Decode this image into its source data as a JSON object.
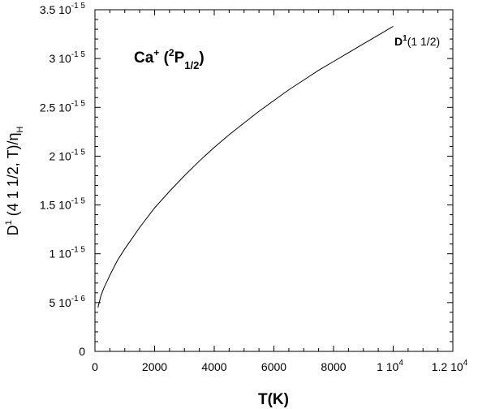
{
  "chart_data": {
    "type": "line",
    "title": "",
    "xlabel": "T(K)",
    "ylabel": {
      "main": "D",
      "sup": "1",
      "middle": " (4 1  1/2, T)/η",
      "sub": "H"
    },
    "annotation": {
      "main": "Ca",
      "sup1": "+",
      "paren_open": " (",
      "sup2": "2",
      "letter": "P",
      "sub": "1/2",
      "paren_close": ")"
    },
    "xlim": [
      0,
      12000
    ],
    "ylim": [
      0,
      3.5e-15
    ],
    "x_ticks": [
      {
        "value": 0,
        "mantissa": "0",
        "exp": ""
      },
      {
        "value": 2000,
        "mantissa": "2000",
        "exp": ""
      },
      {
        "value": 4000,
        "mantissa": "4000",
        "exp": ""
      },
      {
        "value": 6000,
        "mantissa": "6000",
        "exp": ""
      },
      {
        "value": 8000,
        "mantissa": "8000",
        "exp": ""
      },
      {
        "value": 10000,
        "mantissa": "1 10",
        "exp": "4"
      },
      {
        "value": 12000,
        "mantissa": "1.2 10",
        "exp": "4"
      }
    ],
    "y_ticks": [
      {
        "value": 0,
        "mantissa": "0",
        "exp": ""
      },
      {
        "value": 5e-16,
        "mantissa": "5 10",
        "exp": "-1 6"
      },
      {
        "value": 1e-15,
        "mantissa": "1 10",
        "exp": "-1 5"
      },
      {
        "value": 1.5e-15,
        "mantissa": "1.5 10",
        "exp": "-1 5"
      },
      {
        "value": 2e-15,
        "mantissa": "2 10",
        "exp": "-1 5"
      },
      {
        "value": 2.5e-15,
        "mantissa": "2.5 10",
        "exp": "-1 5"
      },
      {
        "value": 3e-15,
        "mantissa": "3 10",
        "exp": "-1 5"
      },
      {
        "value": 3.5e-15,
        "mantissa": "3.5 10",
        "exp": "-1 5"
      }
    ],
    "series": [
      {
        "label": {
          "main": "D",
          "sup": "1",
          "rest": "(1 1/2)"
        },
        "x": [
          100,
          200,
          300,
          500,
          750,
          1000,
          1500,
          2000,
          2500,
          3000,
          3500,
          4000,
          4500,
          5000,
          5500,
          6000,
          6500,
          7000,
          7500,
          8000,
          8500,
          9000,
          9500,
          10000
        ],
        "y": [
          4.5e-16,
          5.7e-16,
          6.5e-16,
          7.8e-16,
          9.3e-16,
          1.05e-15,
          1.27e-15,
          1.47e-15,
          1.64e-15,
          1.8e-15,
          1.95e-15,
          2.09e-15,
          2.22e-15,
          2.34e-15,
          2.46e-15,
          2.57e-15,
          2.68e-15,
          2.78e-15,
          2.88e-15,
          2.97e-15,
          3.06e-15,
          3.15e-15,
          3.24e-15,
          3.33e-15
        ]
      }
    ]
  }
}
